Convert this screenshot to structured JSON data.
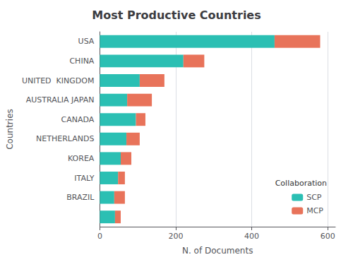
{
  "chart_data": {
    "type": "bar",
    "orientation": "horizontal",
    "stacked": true,
    "title": "Most Productive Countries",
    "xlabel": "N. of Documents",
    "ylabel": "Countries",
    "categories": [
      "USA",
      "CHINA",
      "UNITED  KINGDOM",
      "AUSTRALIA JAPAN",
      "CANADA",
      "NETHERLANDS",
      "KOREA",
      "ITALY",
      "BRAZIL",
      null
    ],
    "series": [
      {
        "name": "SCP",
        "color": "#2bbfb3",
        "values": [
          460,
          220,
          105,
          72,
          95,
          70,
          55,
          48,
          38,
          40
        ]
      },
      {
        "name": "MCP",
        "color": "#e8735a",
        "values": [
          120,
          55,
          65,
          65,
          25,
          35,
          28,
          18,
          28,
          15
        ]
      }
    ],
    "xlim": [
      0,
      620
    ],
    "xticks": [
      0,
      200,
      400,
      600
    ],
    "grid": true,
    "legend": "lower right",
    "legend_title": "Collaboration"
  }
}
